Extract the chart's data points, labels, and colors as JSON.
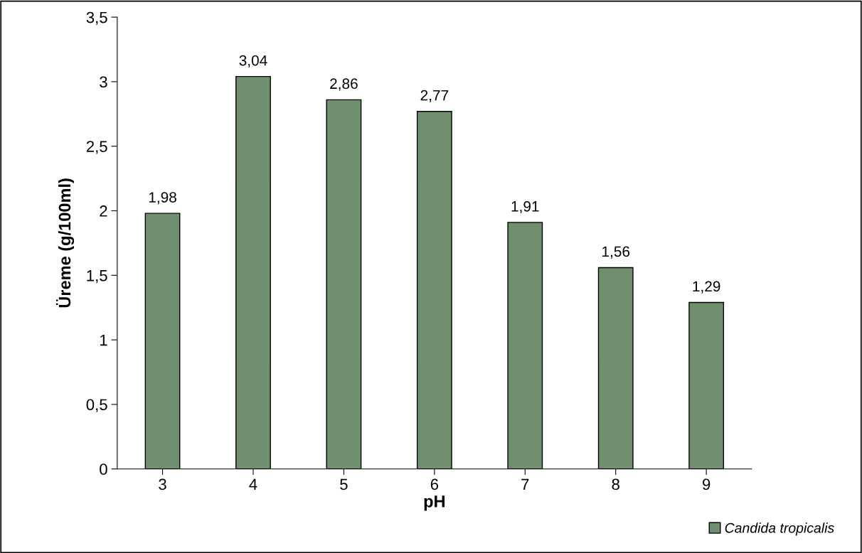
{
  "chart_data": {
    "type": "bar",
    "xlabel": "pH",
    "ylabel": "Üreme (g/100ml)",
    "categories": [
      "3",
      "4",
      "5",
      "6",
      "7",
      "8",
      "9"
    ],
    "series": [
      {
        "name": "Candida tropicalis",
        "color": "#6f8f6f",
        "values": [
          1.98,
          3.04,
          2.86,
          2.77,
          1.91,
          1.56,
          1.29
        ],
        "value_labels": [
          "1,98",
          "3,04",
          "2,86",
          "2,77",
          "1,91",
          "1,56",
          "1,29"
        ]
      }
    ],
    "ylim": [
      0,
      3.5
    ],
    "yticks": [
      0,
      {
        "value": 0.5,
        "label": "0,5"
      },
      1,
      {
        "value": 1.5,
        "label": "1,5"
      },
      2,
      {
        "value": 2.5,
        "label": "2,5"
      },
      3,
      {
        "value": 3.5,
        "label": "3,5"
      }
    ],
    "grid": false,
    "legend": "bottom right"
  }
}
